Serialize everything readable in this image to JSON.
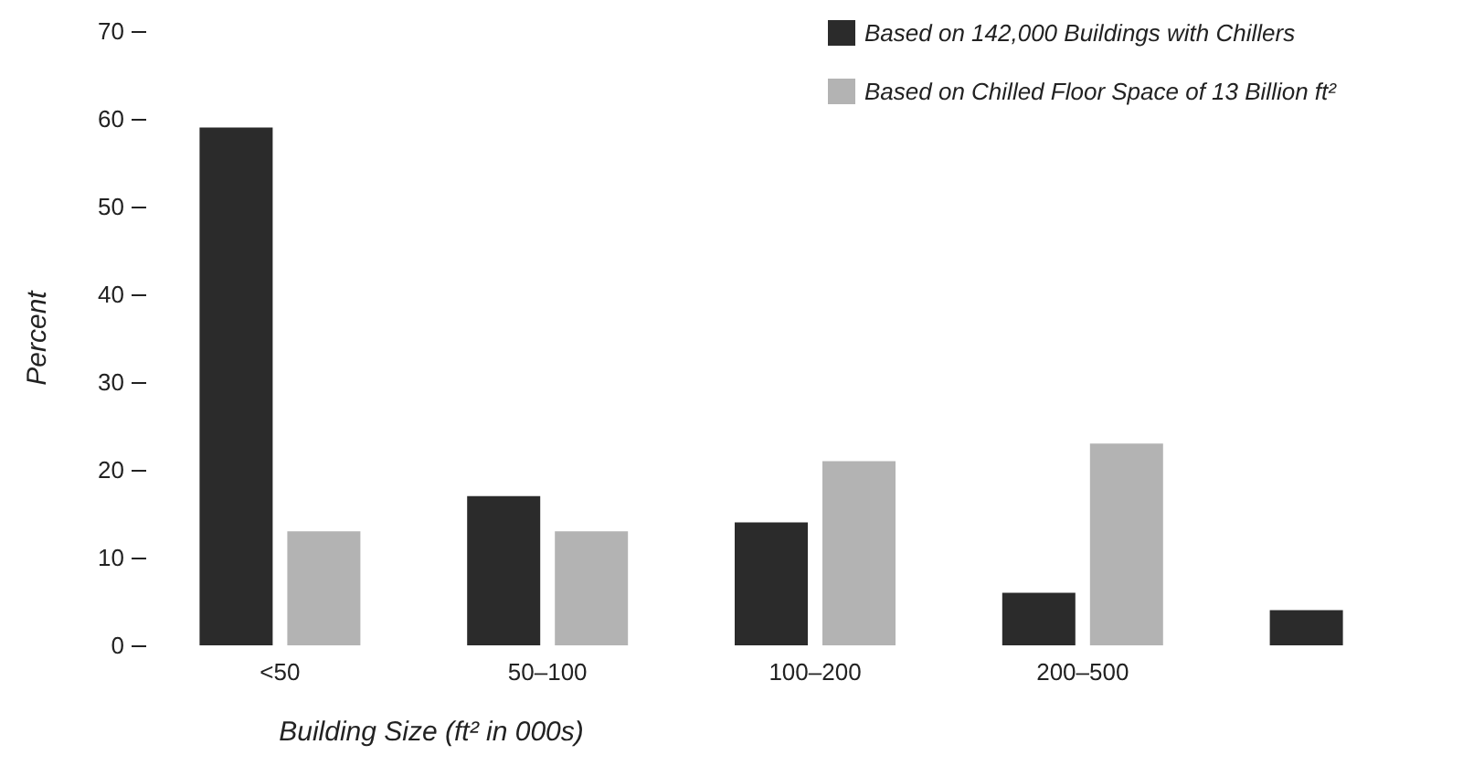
{
  "chart_data": {
    "type": "bar",
    "xlabel": "Building Size (ft² in 000s)",
    "ylabel": "Percent",
    "categories": [
      "<50",
      "50–100",
      "100–200",
      "200–500",
      null
    ],
    "series": [
      {
        "name": "Based on 142,000 Buildings with Chillers",
        "color": "#2b2b2b",
        "values": [
          59,
          17,
          14,
          6,
          4
        ]
      },
      {
        "name": "Based on Chilled Floor Space of 13 Billion ft²",
        "color": "#b3b3b3",
        "values": [
          13,
          13,
          21,
          23,
          null
        ]
      }
    ],
    "ylim": [
      0,
      70
    ],
    "yticks": [
      0,
      10,
      20,
      30,
      40,
      50,
      60,
      70
    ],
    "grid": false,
    "legend": "top right"
  }
}
